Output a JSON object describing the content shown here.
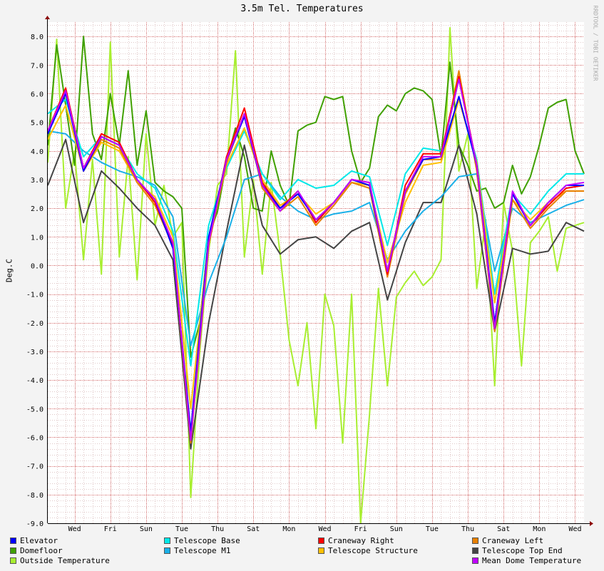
{
  "chart_data": {
    "type": "line",
    "title": "3.5m Tel. Temperatures",
    "ylabel": "Deg.C",
    "xlabel": "",
    "watermark": "RRDTOOL / TOBI OETIKER",
    "ylim": [
      -9.0,
      8.5
    ],
    "yticks": [
      "8.0",
      "7.0",
      "6.0",
      "5.0",
      "4.0",
      "3.0",
      "2.0",
      "1.0",
      "0.0",
      "-1.0",
      "-2.0",
      "-3.0",
      "-4.0",
      "-5.0",
      "-6.0",
      "-7.0",
      "-8.0",
      "-9.0"
    ],
    "xticks": [
      "Wed",
      "Fri",
      "Sun",
      "Tue",
      "Thu",
      "Sat",
      "Mon",
      "Wed",
      "Fri",
      "Sun",
      "Tue",
      "Thu",
      "Sat",
      "Mon",
      "Wed"
    ],
    "x_domain_days": [
      0,
      30
    ],
    "grid": true,
    "legend_position": "bottom",
    "series": [
      {
        "name": "Elevator",
        "color": "#0000ff",
        "x": [
          0,
          1,
          2,
          3,
          4,
          5,
          6,
          7,
          8,
          9,
          10,
          11,
          12,
          13,
          14,
          15,
          16,
          17,
          18,
          19,
          20,
          21,
          22,
          23,
          24,
          25,
          26,
          27,
          28,
          29,
          30
        ],
        "values": [
          4.6,
          6.0,
          3.3,
          4.5,
          4.2,
          3.0,
          2.3,
          0.6,
          -5.8,
          1.0,
          3.7,
          5.2,
          2.8,
          2.0,
          2.5,
          1.6,
          2.2,
          3.0,
          2.8,
          -0.2,
          2.6,
          3.7,
          3.8,
          5.9,
          3.5,
          -2.0,
          2.5,
          1.4,
          2.2,
          2.8,
          2.8
        ]
      },
      {
        "name": "Telescope Base",
        "color": "#00e8e8",
        "x": [
          0,
          1,
          2,
          3,
          4,
          5,
          6,
          7,
          8,
          9,
          10,
          11,
          12,
          13,
          14,
          15,
          16,
          17,
          18,
          19,
          20,
          21,
          22,
          23,
          24,
          25,
          26,
          27,
          28,
          29,
          30
        ],
        "values": [
          5.3,
          5.8,
          3.8,
          4.5,
          4.2,
          3.2,
          2.7,
          1.2,
          -3.5,
          1.4,
          3.4,
          4.7,
          3.2,
          2.3,
          3.0,
          2.7,
          2.8,
          3.3,
          3.1,
          0.7,
          3.2,
          4.1,
          4.0,
          5.8,
          3.7,
          -1.0,
          2.5,
          1.8,
          2.6,
          3.2,
          3.2
        ]
      },
      {
        "name": "Craneway Right",
        "color": "#ff0000",
        "x": [
          0,
          1,
          2,
          3,
          4,
          5,
          6,
          7,
          8,
          9,
          10,
          11,
          12,
          13,
          14,
          15,
          16,
          17,
          18,
          19,
          20,
          21,
          22,
          23,
          24,
          25,
          26,
          27,
          28,
          29,
          30
        ],
        "values": [
          4.7,
          6.2,
          3.4,
          4.6,
          4.3,
          3.0,
          2.2,
          0.7,
          -6.0,
          0.8,
          3.8,
          5.5,
          2.9,
          2.0,
          2.6,
          1.5,
          2.2,
          3.0,
          2.9,
          -0.3,
          2.8,
          3.9,
          3.9,
          6.6,
          3.5,
          -2.1,
          2.5,
          1.4,
          2.1,
          2.7,
          2.8
        ]
      },
      {
        "name": "Craneway Left",
        "color": "#e88000",
        "x": [
          0,
          1,
          2,
          3,
          4,
          5,
          6,
          7,
          8,
          9,
          10,
          11,
          12,
          13,
          14,
          15,
          16,
          17,
          18,
          19,
          20,
          21,
          22,
          23,
          24,
          25,
          26,
          27,
          28,
          29,
          30
        ],
        "values": [
          4.6,
          6.1,
          3.3,
          4.4,
          4.1,
          2.9,
          2.1,
          0.7,
          -6.2,
          0.7,
          3.6,
          5.3,
          2.7,
          1.9,
          2.4,
          1.4,
          2.1,
          2.9,
          2.7,
          -0.4,
          2.5,
          3.7,
          3.7,
          6.8,
          3.3,
          -2.3,
          2.3,
          1.3,
          2.0,
          2.6,
          2.6
        ]
      },
      {
        "name": "Domefloor",
        "color": "#40a000",
        "x": [
          0,
          0.5,
          1,
          1.5,
          2,
          2.5,
          3,
          3.5,
          4,
          4.5,
          5,
          5.5,
          6,
          6.5,
          7,
          7.5,
          8,
          8.5,
          9,
          9.5,
          10,
          10.5,
          11,
          11.5,
          12,
          12.5,
          13,
          13.5,
          14,
          14.5,
          15,
          15.5,
          16,
          16.5,
          17,
          17.5,
          18,
          18.5,
          19,
          19.5,
          20,
          20.5,
          21,
          21.5,
          22,
          22.5,
          23,
          23.5,
          24,
          24.5,
          25,
          25.5,
          26,
          26.5,
          27,
          27.5,
          28,
          28.5,
          29,
          29.5,
          30
        ],
        "values": [
          4.2,
          7.7,
          5.6,
          3.5,
          8.0,
          4.6,
          3.7,
          6.0,
          4.2,
          6.8,
          3.5,
          5.4,
          2.9,
          2.6,
          2.4,
          2.0,
          -3.2,
          -2.0,
          1.0,
          1.9,
          3.6,
          4.8,
          3.8,
          2.0,
          1.9,
          4.0,
          2.8,
          2.1,
          4.7,
          4.9,
          5.0,
          5.9,
          5.8,
          5.9,
          4.0,
          2.9,
          3.4,
          5.2,
          5.6,
          5.4,
          6.0,
          6.2,
          6.1,
          5.8,
          3.8,
          7.1,
          4.2,
          3.5,
          2.6,
          2.7,
          2.0,
          2.2,
          3.5,
          2.5,
          3.1,
          4.2,
          5.5,
          5.7,
          5.8,
          4.0,
          3.2
        ]
      },
      {
        "name": "Telescope M1",
        "color": "#1ab0e8",
        "x": [
          0,
          1,
          2,
          3,
          4,
          5,
          6,
          7,
          8,
          9,
          10,
          11,
          12,
          13,
          14,
          15,
          16,
          17,
          18,
          19,
          20,
          21,
          22,
          23,
          24,
          25,
          26,
          27,
          28,
          29,
          30
        ],
        "values": [
          4.7,
          4.6,
          4.0,
          3.6,
          3.3,
          3.1,
          2.8,
          1.7,
          -2.8,
          -0.6,
          1.0,
          3.0,
          3.2,
          2.4,
          1.9,
          1.6,
          1.8,
          1.9,
          2.2,
          0.2,
          1.2,
          1.9,
          2.4,
          3.1,
          3.2,
          -0.2,
          2.0,
          1.5,
          1.8,
          2.1,
          2.3
        ]
      },
      {
        "name": "Telescope Structure",
        "color": "#ffc000",
        "x": [
          0,
          1,
          2,
          3,
          4,
          5,
          6,
          7,
          8,
          9,
          10,
          11,
          12,
          13,
          14,
          15,
          16,
          17,
          18,
          19,
          20,
          21,
          22,
          23,
          24,
          25,
          26,
          27,
          28,
          29,
          30
        ],
        "values": [
          4.4,
          5.6,
          3.3,
          4.3,
          4.0,
          2.9,
          2.4,
          1.0,
          -5.0,
          0.9,
          3.5,
          4.8,
          3.0,
          2.1,
          2.5,
          1.8,
          2.2,
          2.9,
          2.8,
          0.1,
          2.2,
          3.5,
          3.6,
          5.8,
          3.6,
          -1.3,
          2.3,
          1.6,
          2.2,
          2.6,
          2.6
        ]
      },
      {
        "name": "Telescope Top End",
        "color": "#444444",
        "x": [
          0,
          1,
          2,
          3,
          4,
          5,
          6,
          7,
          8,
          9,
          10,
          11,
          12,
          13,
          14,
          15,
          16,
          17,
          18,
          19,
          20,
          21,
          22,
          23,
          24,
          25,
          26,
          27,
          28,
          29,
          30
        ],
        "values": [
          2.8,
          4.4,
          1.5,
          3.3,
          2.7,
          2.0,
          1.4,
          0.2,
          -6.4,
          -2.0,
          1.2,
          4.2,
          1.4,
          0.4,
          0.9,
          1.0,
          0.6,
          1.2,
          1.5,
          -1.2,
          0.8,
          2.2,
          2.2,
          4.2,
          1.8,
          -2.3,
          0.6,
          0.4,
          0.5,
          1.5,
          1.2
        ]
      },
      {
        "name": "Outside Temperature",
        "color": "#a8ee30",
        "x": [
          0,
          0.5,
          1,
          1.5,
          2,
          2.5,
          3,
          3.5,
          4,
          4.5,
          5,
          5.5,
          6,
          6.5,
          7,
          7.5,
          8,
          8.5,
          9,
          9.5,
          10,
          10.5,
          11,
          11.5,
          12,
          12.5,
          13,
          13.5,
          14,
          14.5,
          15,
          15.5,
          16,
          16.5,
          17,
          17.5,
          18,
          18.5,
          19,
          19.5,
          20,
          20.5,
          21,
          21.5,
          22,
          22.5,
          23,
          23.5,
          24,
          24.5,
          25,
          25.5,
          26,
          26.5,
          27,
          27.5,
          28,
          28.5,
          29,
          29.5,
          30
        ],
        "values": [
          3.6,
          7.9,
          2.0,
          4.0,
          0.2,
          3.7,
          -0.3,
          7.8,
          0.3,
          3.8,
          -0.5,
          4.6,
          1.4,
          2.8,
          1.0,
          1.5,
          -8.1,
          -3.0,
          0.5,
          2.8,
          3.2,
          7.5,
          0.3,
          3.0,
          -0.3,
          2.9,
          0.4,
          -2.6,
          -4.2,
          -2.0,
          -5.7,
          -1.0,
          -2.1,
          -6.2,
          -1.0,
          -9.0,
          -5.2,
          -0.8,
          -4.2,
          -1.1,
          -0.6,
          -0.2,
          -0.7,
          -0.4,
          0.2,
          8.3,
          3.3,
          4.6,
          -0.8,
          1.6,
          -4.2,
          2.2,
          0.5,
          -3.5,
          0.8,
          1.2,
          1.7,
          -0.2,
          1.3,
          1.4,
          1.5
        ]
      },
      {
        "name": "Mean Dome Temperature",
        "color": "#c000ff",
        "x": [
          0,
          1,
          2,
          3,
          4,
          5,
          6,
          7,
          8,
          9,
          10,
          11,
          12,
          13,
          14,
          15,
          16,
          17,
          18,
          19,
          20,
          21,
          22,
          23,
          24,
          25,
          26,
          27,
          28,
          29,
          30
        ],
        "values": [
          4.7,
          6.1,
          3.4,
          4.5,
          4.2,
          3.0,
          2.3,
          0.8,
          -6.1,
          0.8,
          3.7,
          5.3,
          2.8,
          1.9,
          2.6,
          1.6,
          2.2,
          3.0,
          2.9,
          -0.2,
          2.6,
          3.8,
          3.8,
          6.5,
          3.5,
          -2.2,
          2.6,
          1.4,
          2.2,
          2.8,
          2.9
        ]
      }
    ]
  }
}
